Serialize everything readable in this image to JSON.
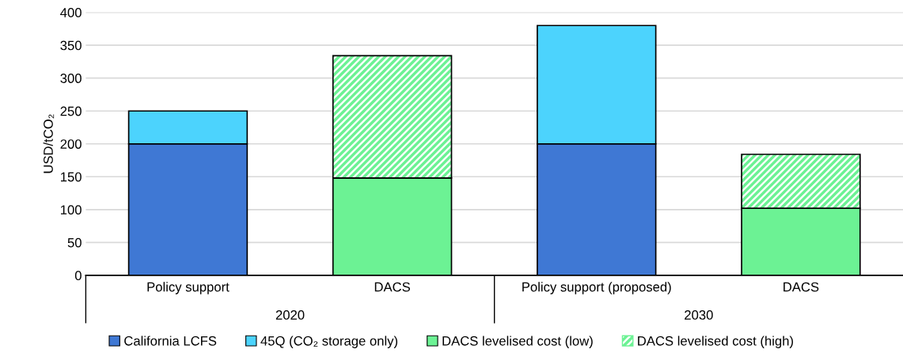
{
  "chart_data": {
    "type": "bar",
    "stacked": true,
    "ylabel": "USD/tCO₂",
    "categories": [
      "Policy support",
      "DACS",
      "Policy support (proposed)",
      "DACS"
    ],
    "annotations": [
      "2020",
      "2030"
    ],
    "series": [
      {
        "name": "California LCFS",
        "color": "#3f78d4",
        "values": [
          200,
          null,
          200,
          null
        ]
      },
      {
        "name": "45Q (CO₂ storage only)",
        "color": "#4cd3fd",
        "values": [
          50,
          null,
          180,
          null
        ]
      },
      {
        "name": "DACS levelised cost (low)",
        "color": "#6cf294",
        "values": [
          null,
          148,
          null,
          102
        ]
      },
      {
        "name": "DACS levelised cost (high)",
        "color": "#6cf294",
        "values": [
          null,
          186,
          null,
          82
        ]
      }
    ],
    "ylim": [
      0,
      400
    ],
    "yticks": [
      0,
      50,
      100,
      150,
      200,
      250,
      300,
      350,
      400
    ],
    "grid": "y",
    "legend": "bottom"
  }
}
